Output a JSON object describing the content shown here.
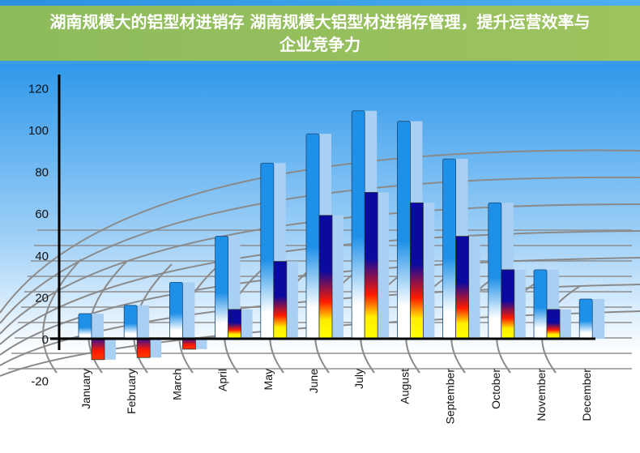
{
  "banner": {
    "title": "湖南规模大的铝型材进销存 湖南规模大铝型材进销存管理，提升运营效率与企业竞争力"
  },
  "chart_data": {
    "type": "bar",
    "title": "",
    "xlabel": "",
    "ylabel": "",
    "ylim": [
      -20,
      120
    ],
    "yticks": [
      -20,
      0,
      20,
      40,
      60,
      80,
      100,
      120
    ],
    "categories": [
      "January",
      "February",
      "March",
      "April",
      "May",
      "June",
      "July",
      "August",
      "September",
      "October",
      "November",
      "December"
    ],
    "series": [
      {
        "values": [
          12,
          16,
          27,
          49,
          84,
          98,
          109,
          104,
          86,
          65,
          33,
          19
        ],
        "color": "#1e90e8"
      },
      {
        "values": [
          -10,
          -9,
          -5,
          14,
          37,
          59,
          70,
          65,
          49,
          33,
          14,
          null
        ],
        "color": "#1010a0"
      }
    ],
    "grid": false,
    "legend": "none"
  }
}
